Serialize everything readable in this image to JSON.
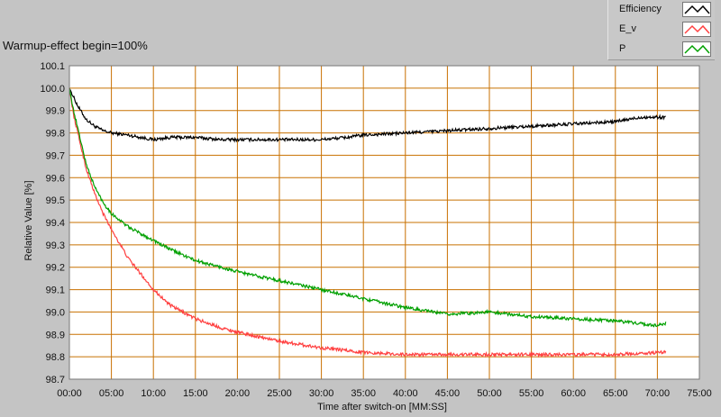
{
  "window": {
    "title": "Warmup-effect begin=100%"
  },
  "legend": {
    "items": [
      {
        "label": "Efficiency",
        "color": "#000000"
      },
      {
        "label": "E_v",
        "color": "#ff4040"
      },
      {
        "label": "P",
        "color": "#00a000"
      }
    ]
  },
  "chart_data": {
    "type": "line",
    "title": "Warmup-effect begin=100%",
    "xlabel": "Time after switch-on [MM:SS]",
    "ylabel": "Relative Value [%]",
    "xlim": [
      0,
      75
    ],
    "ylim": [
      98.7,
      100.1
    ],
    "x_ticks": [
      "00:00",
      "05:00",
      "10:00",
      "15:00",
      "20:00",
      "25:00",
      "30:00",
      "35:00",
      "40:00",
      "45:00",
      "50:00",
      "55:00",
      "60:00",
      "65:00",
      "70:00",
      "75:00"
    ],
    "y_ticks": [
      "100.1",
      "100.0",
      "99.9",
      "99.8",
      "99.7",
      "99.6",
      "99.5",
      "99.4",
      "99.3",
      "99.2",
      "99.1",
      "99.0",
      "98.9",
      "98.8",
      "98.7"
    ],
    "grid": true,
    "grid_color": "#c87000",
    "plot_background": "#ffffff",
    "legend_position": "top-right",
    "series": [
      {
        "name": "Efficiency",
        "color": "#000000",
        "x": [
          0,
          0.5,
          1,
          2,
          3,
          4,
          5,
          7,
          10,
          12,
          15,
          18,
          20,
          25,
          30,
          33,
          35,
          40,
          45,
          50,
          55,
          60,
          65,
          68,
          71
        ],
        "y": [
          100.0,
          99.96,
          99.92,
          99.86,
          99.83,
          99.81,
          99.8,
          99.79,
          99.77,
          99.78,
          99.78,
          99.77,
          99.77,
          99.77,
          99.77,
          99.78,
          99.79,
          99.8,
          99.81,
          99.82,
          99.83,
          99.84,
          99.85,
          99.87,
          99.87
        ]
      },
      {
        "name": "E_v",
        "color": "#ff4040",
        "x": [
          0,
          0.5,
          1,
          2,
          3,
          4,
          5,
          7,
          10,
          12,
          15,
          18,
          20,
          25,
          30,
          35,
          40,
          45,
          50,
          55,
          60,
          65,
          71
        ],
        "y": [
          100.0,
          99.88,
          99.8,
          99.64,
          99.53,
          99.44,
          99.37,
          99.24,
          99.1,
          99.03,
          98.97,
          98.93,
          98.91,
          98.87,
          98.84,
          98.82,
          98.81,
          98.81,
          98.81,
          98.81,
          98.81,
          98.81,
          98.82
        ]
      },
      {
        "name": "P",
        "color": "#00a000",
        "x": [
          0,
          0.5,
          1,
          2,
          3,
          4,
          5,
          7,
          10,
          12,
          15,
          18,
          20,
          25,
          30,
          35,
          40,
          45,
          50,
          55,
          60,
          65,
          70,
          71
        ],
        "y": [
          100.0,
          99.9,
          99.82,
          99.66,
          99.56,
          99.49,
          99.44,
          99.38,
          99.32,
          99.28,
          99.23,
          99.2,
          99.18,
          99.14,
          99.1,
          99.06,
          99.02,
          98.99,
          99.0,
          98.98,
          98.97,
          98.96,
          98.94,
          98.95
        ]
      }
    ]
  }
}
